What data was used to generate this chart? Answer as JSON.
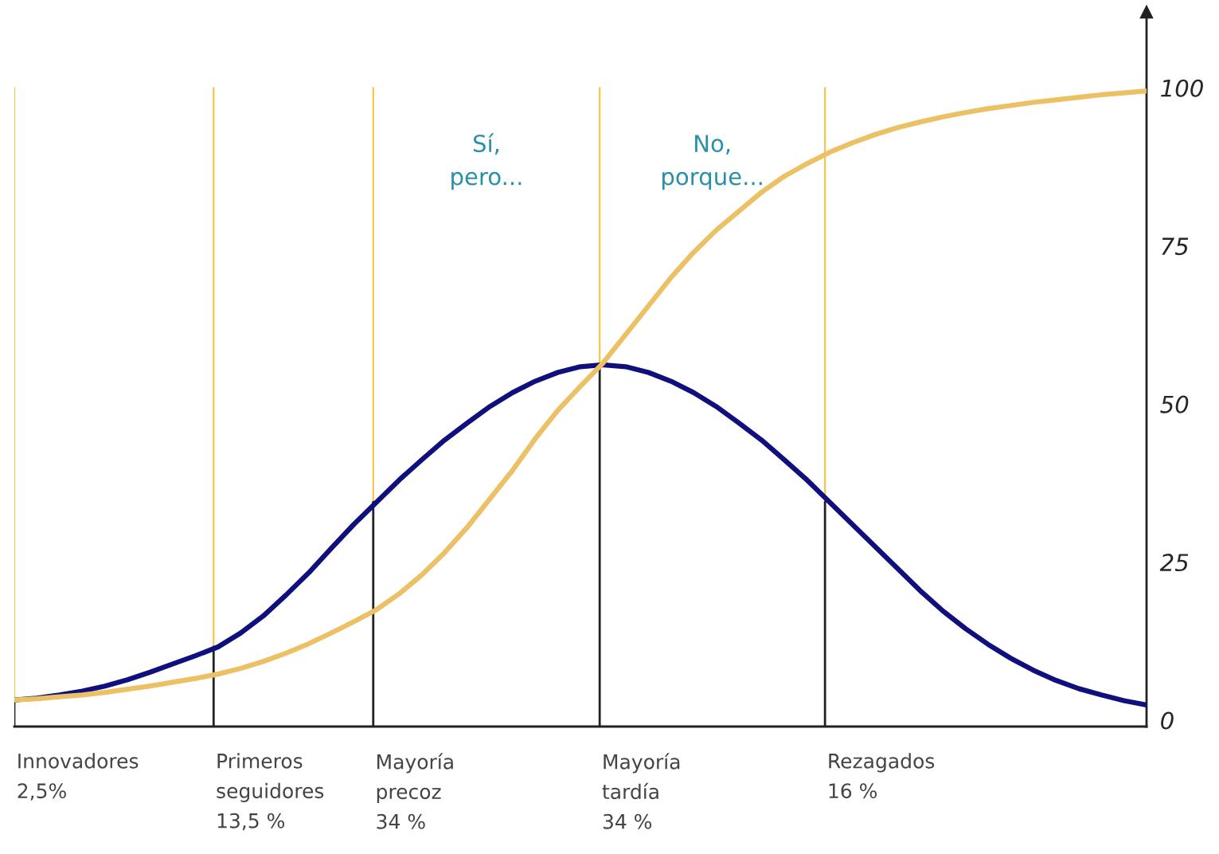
{
  "chart_data": {
    "type": "line",
    "categories": [
      null,
      null,
      null,
      null,
      null,
      null,
      null,
      null,
      null,
      null,
      null,
      null,
      null,
      null,
      null,
      null,
      null,
      null,
      null,
      null,
      null,
      null,
      null,
      null,
      null,
      null,
      null,
      null,
      null,
      null,
      null,
      null,
      null,
      null,
      null,
      null,
      null,
      null,
      null,
      null,
      null,
      null,
      null,
      null,
      null,
      null,
      null,
      null,
      null,
      null,
      null
    ],
    "series": [
      {
        "color": "#0f0f7d",
        "values": [
          3.2,
          3.5,
          4,
          4.6,
          5.4,
          6.4,
          7.6,
          8.9,
          10.2,
          11.6,
          13.8,
          16.5,
          19.8,
          23.3,
          27.2,
          31,
          34.5,
          38,
          41.2,
          44.3,
          47,
          49.6,
          51.8,
          53.6,
          55,
          55.9,
          56.2,
          55.9,
          55,
          53.6,
          51.8,
          49.6,
          47,
          44.3,
          41.2,
          38,
          34.5,
          31,
          27.5,
          24,
          20.5,
          17.3,
          14.5,
          12,
          9.8,
          7.9,
          6.3,
          5,
          4,
          3.1,
          2.4
        ]
      },
      {
        "color": "#ecc064",
        "values": [
          3.2,
          3.4,
          3.7,
          4,
          4.4,
          4.9,
          5.4,
          6,
          6.6,
          7.3,
          8.2,
          9.3,
          10.6,
          12.1,
          13.8,
          15.6,
          17.5,
          20,
          23,
          26.5,
          30.5,
          35,
          39.5,
          44.5,
          49,
          52.8,
          56.5,
          61,
          65.5,
          70,
          74,
          77.5,
          80.5,
          83.5,
          86,
          88,
          89.8,
          91.3,
          92.6,
          93.7,
          94.6,
          95.4,
          96.1,
          96.7,
          97.2,
          97.7,
          98.1,
          98.5,
          98.9,
          99.2,
          99.5
        ]
      }
    ],
    "ylim": [
      -1,
      112
    ],
    "yticks": [
      0,
      25,
      50,
      75,
      100
    ],
    "annotations": [
      "Sí,\npero...",
      "No,\nporque...",
      "Innovadores\n2,5%",
      "Primeros\nseguidores\n13,5 %",
      "Mayoría\nprecoz\n34 %",
      "Mayoría\ntardía\n34 %",
      "Rezagados\n16 %"
    ]
  }
}
